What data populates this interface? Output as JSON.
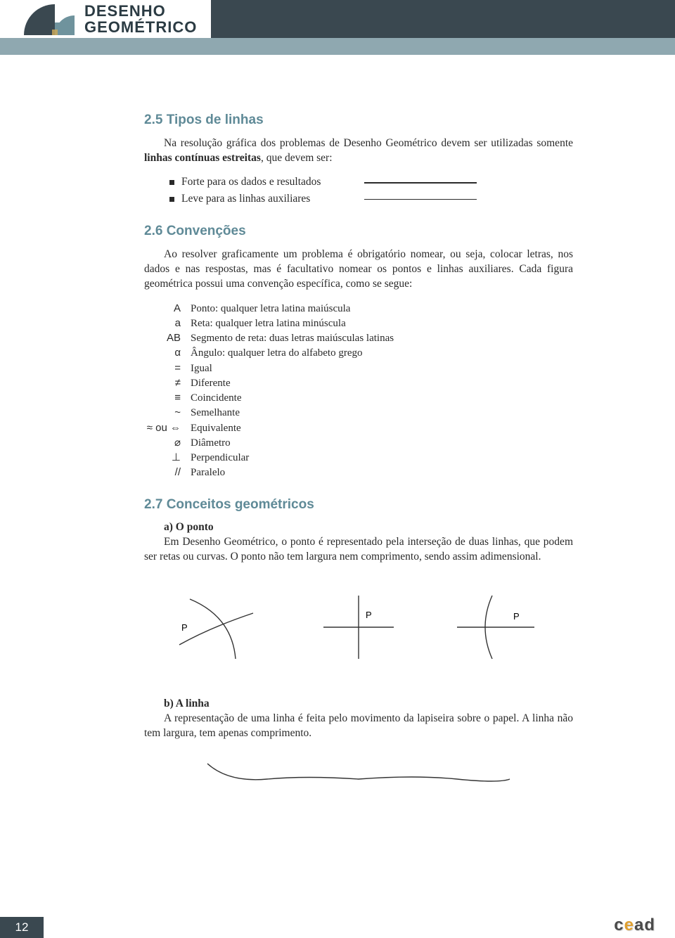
{
  "header": {
    "title_line1": "DESENHO",
    "title_line2": "GEOMÉTRICO",
    "logo_colors": {
      "teal": "#6f939d",
      "dark": "#3a4850",
      "gold": "#c9a85a"
    }
  },
  "sec25": {
    "heading": "2.5 Tipos de linhas",
    "para_pre": "Na resolução gráfica dos problemas de Desenho Geométrico devem ser utilizadas somente ",
    "para_bold": "linhas contínuas estreitas",
    "para_post": ", que devem ser:",
    "bullets": [
      {
        "text": "Forte para os dados e resultados",
        "thick": true
      },
      {
        "text": "Leve para as linhas auxiliares",
        "thick": false
      }
    ]
  },
  "sec26": {
    "heading": "2.6 Convenções",
    "para": "Ao resolver graficamente um problema é obrigatório nomear, ou seja, colocar letras, nos dados e nas respostas, mas é facultativo nomear os pontos e linhas auxiliares. Cada figura geométrica possui uma convenção específica, como se segue:",
    "items": [
      {
        "sym": "A",
        "label": "Ponto: qualquer letra latina maiúscula"
      },
      {
        "sym": "a",
        "label": "Reta: qualquer letra latina minúscula"
      },
      {
        "sym": "AB",
        "label": "Segmento de reta: duas letras maiúsculas latinas"
      },
      {
        "sym": "α",
        "label": "Ângulo: qualquer letra do alfabeto grego"
      },
      {
        "sym": "=",
        "label": "Igual"
      },
      {
        "sym": "≠",
        "label": "Diferente"
      },
      {
        "sym": "≡",
        "label": "Coincidente"
      },
      {
        "sym": "~",
        "label": "Semelhante"
      },
      {
        "sym": "≈ ou ⇔",
        "label": "Equivalente"
      },
      {
        "sym": "⌀",
        "label": "Diâmetro"
      },
      {
        "sym": "⊥",
        "label": "Perpendicular"
      },
      {
        "sym": "//",
        "label": "Paralelo"
      }
    ]
  },
  "sec27": {
    "heading": "2.7 Conceitos geométricos",
    "a_title": "a) O ponto",
    "a_text": "Em Desenho Geométrico, o ponto é representado pela interseção de duas linhas, que podem ser retas ou curvas. O ponto não tem largura nem comprimento, sendo assim adimensional.",
    "b_title": "b) A linha",
    "b_text": "A representação de uma linha é feita pelo movimento da lapiseira sobre o papel. A linha não tem largura, tem apenas comprimento.",
    "p_label": "P"
  },
  "footer": {
    "page": "12"
  }
}
